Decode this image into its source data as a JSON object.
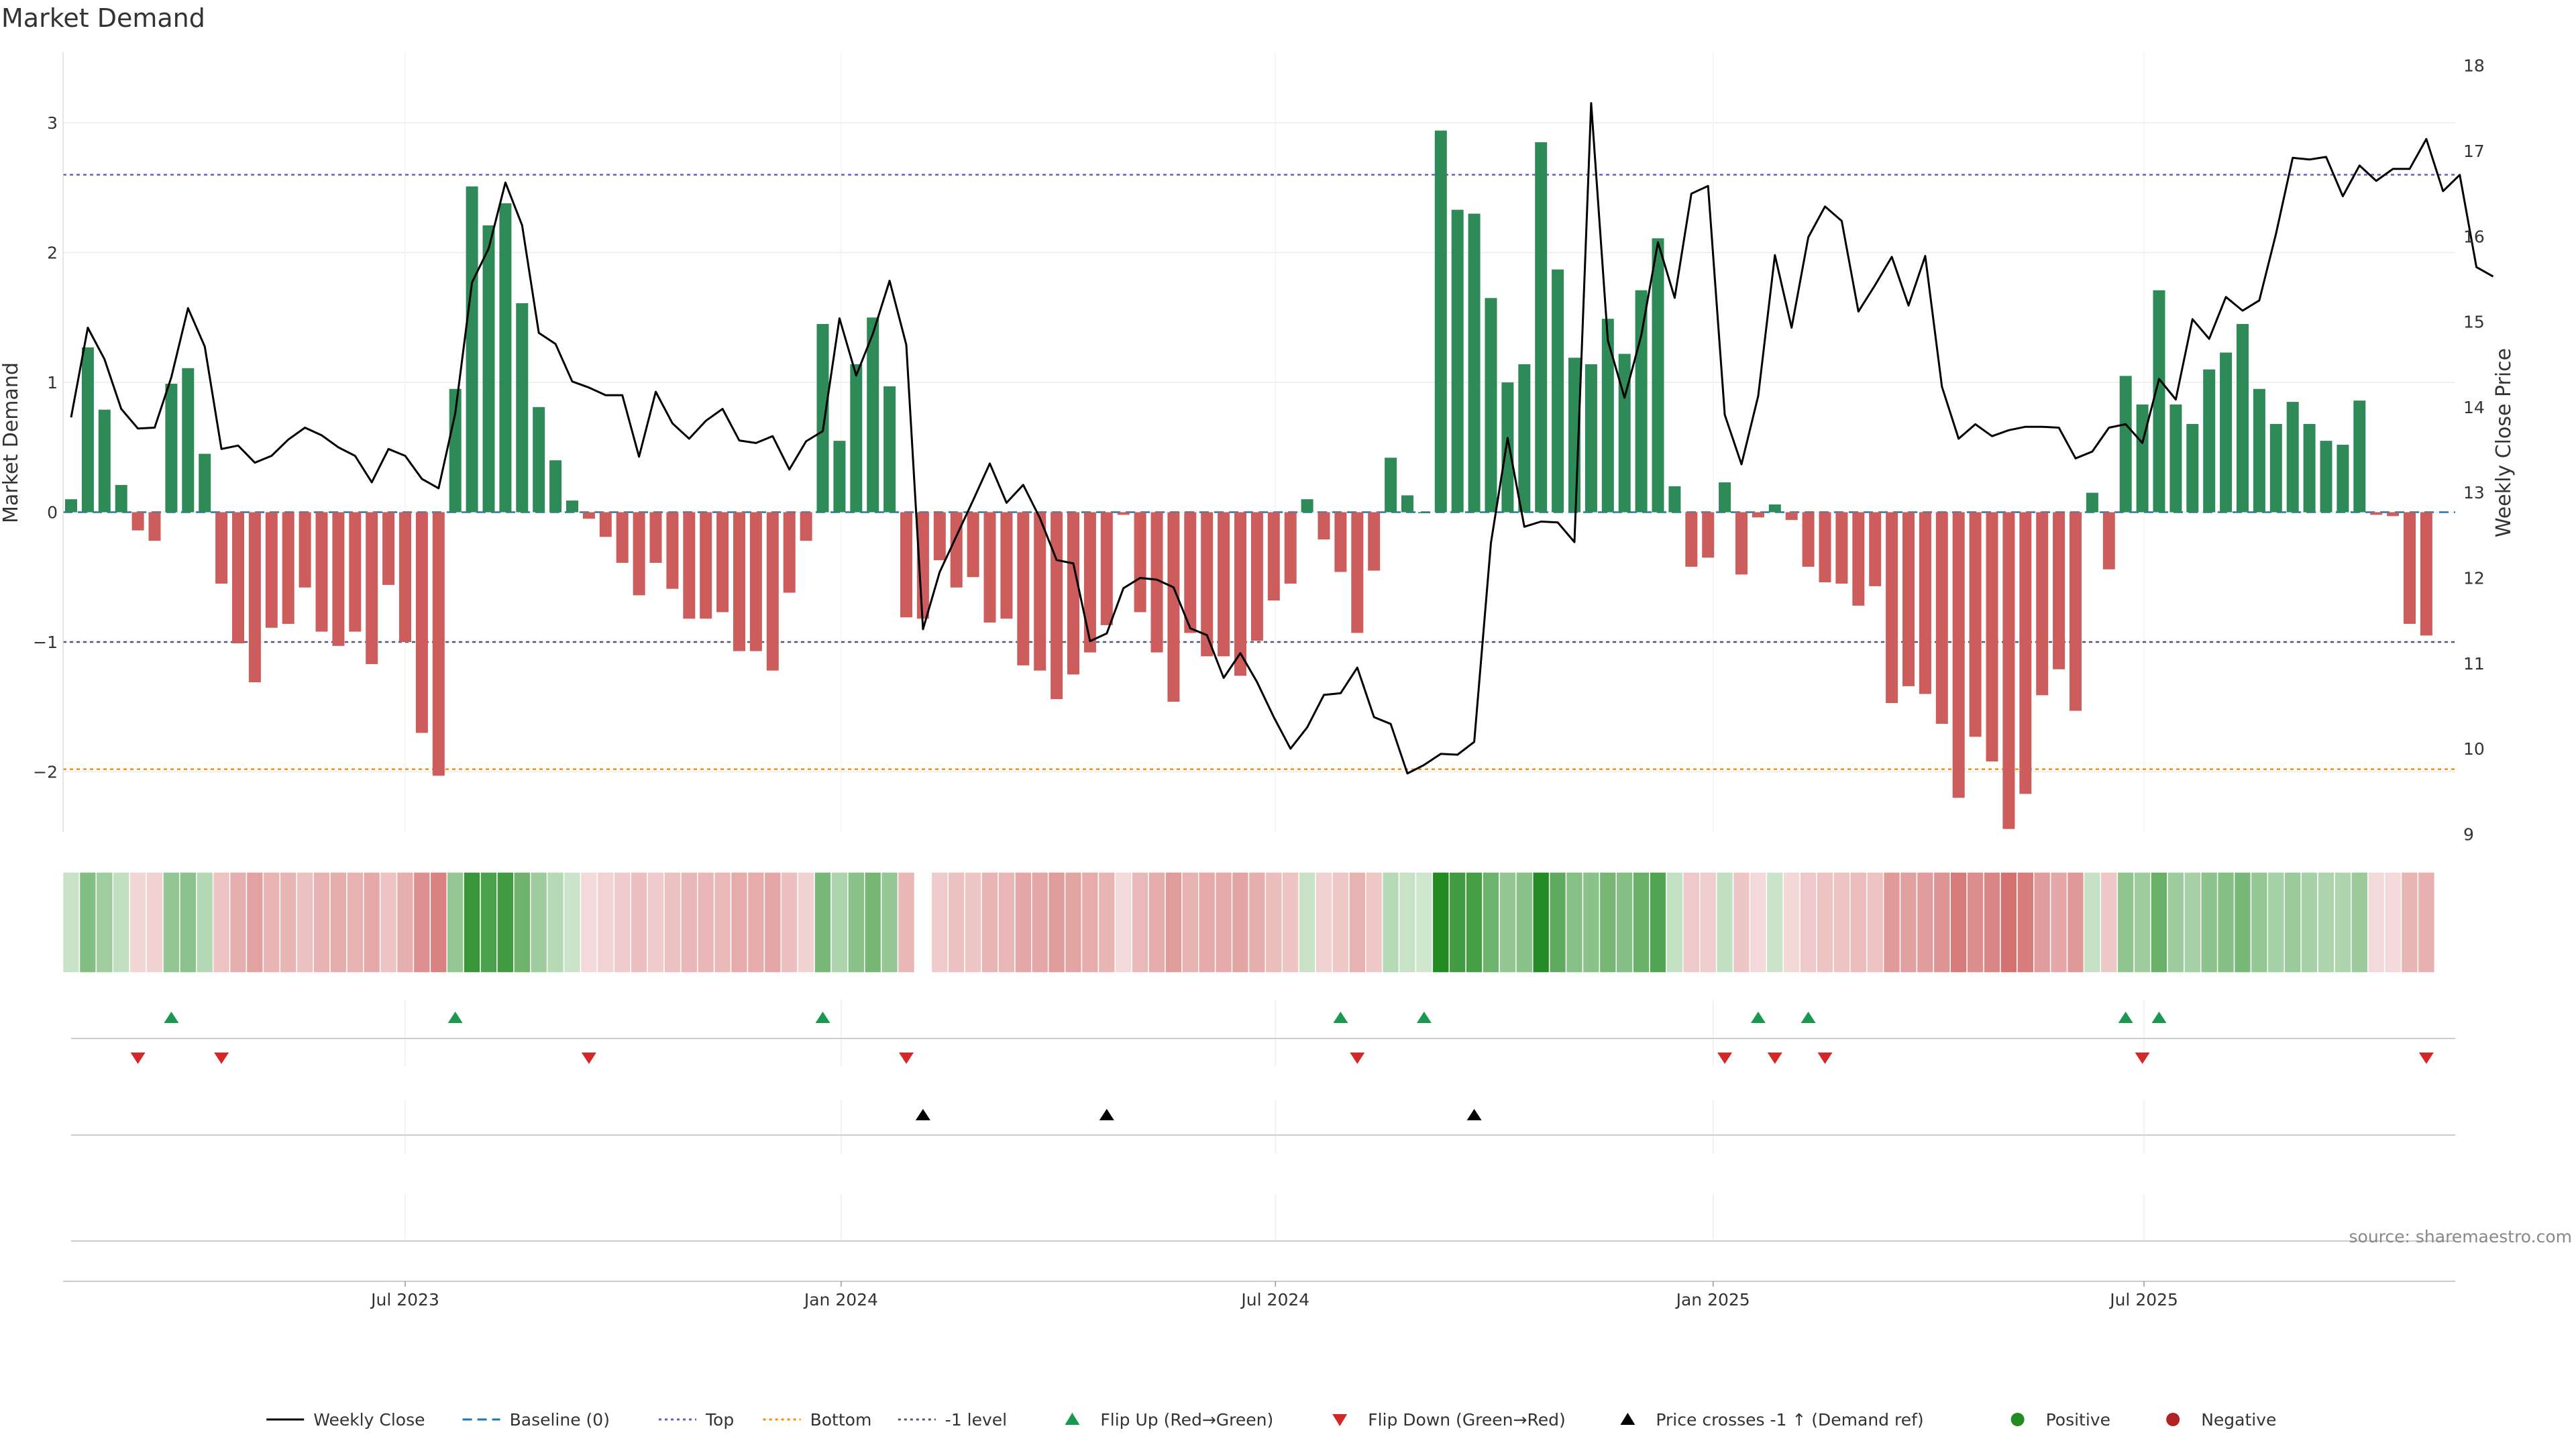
{
  "chart_data": {
    "type": "bar",
    "title": "Market Demand",
    "ylabel": "Market Demand",
    "y2label": "Weekly Close Price",
    "ylim": [
      -2.7,
      3.3
    ],
    "y2lim": [
      8.9,
      18.1
    ],
    "yticks": [
      {
        "v": 3,
        "t": "3"
      },
      {
        "v": 2,
        "t": "2"
      },
      {
        "v": 1,
        "t": "1"
      },
      {
        "v": 0,
        "t": "0"
      },
      {
        "v": -1,
        "t": "−1"
      },
      {
        "v": -2,
        "t": "−2"
      }
    ],
    "y2ticks": [
      9,
      10,
      11,
      12,
      13,
      14,
      15,
      16,
      17,
      18
    ],
    "xticks": [
      {
        "i": 20,
        "t": "Jul 2023"
      },
      {
        "i": 46.1,
        "t": "Jan 2024"
      },
      {
        "i": 72.1,
        "t": "Jul 2024"
      },
      {
        "i": 98.3,
        "t": "Jan 2025"
      },
      {
        "i": 124.1,
        "t": "Jul 2025"
      }
    ],
    "reference_lines": {
      "top": 2.6,
      "bottom": -1.98,
      "minus1": -1.0,
      "baseline": 0
    },
    "demand": [
      0.1,
      1.27,
      0.79,
      0.21,
      -0.14,
      -0.22,
      0.99,
      1.11,
      0.45,
      -0.55,
      -1.01,
      -1.31,
      -0.89,
      -0.86,
      -0.58,
      -0.92,
      -1.03,
      -0.92,
      -1.17,
      -0.56,
      -1.0,
      -1.7,
      -2.03,
      0.95,
      2.51,
      2.21,
      2.38,
      1.61,
      0.81,
      0.4,
      0.09,
      -0.05,
      -0.19,
      -0.39,
      -0.64,
      -0.39,
      -0.59,
      -0.82,
      -0.82,
      -0.77,
      -1.07,
      -1.07,
      -1.22,
      -0.62,
      -0.22,
      1.45,
      0.55,
      1.14,
      1.5,
      0.97,
      -0.81,
      -0.82,
      -0.37,
      -0.58,
      -0.5,
      -0.85,
      -0.82,
      -1.18,
      -1.22,
      -1.44,
      -1.25,
      -1.08,
      -0.87,
      -0.02,
      -0.77,
      -1.08,
      -1.46,
      -0.93,
      -1.11,
      -1.11,
      -1.26,
      -0.99,
      -0.68,
      -0.55,
      0.1,
      -0.21,
      -0.46,
      -0.93,
      -0.45,
      0.42,
      0.13,
      0.0,
      2.94,
      2.33,
      2.3,
      1.65,
      1.0,
      1.14,
      2.85,
      1.87,
      1.19,
      1.14,
      1.49,
      1.22,
      1.71,
      2.11,
      0.2,
      -0.42,
      -0.35,
      0.23,
      -0.48,
      -0.04,
      0.06,
      -0.06,
      -0.42,
      -0.54,
      -0.55,
      -0.72,
      -0.57,
      -1.47,
      -1.34,
      -1.4,
      -1.63,
      -2.2,
      -1.73,
      -1.92,
      -2.44,
      -2.17,
      -1.41,
      -1.21,
      -1.53,
      0.15,
      -0.44,
      1.05,
      0.83,
      1.71,
      0.83,
      0.68,
      1.1,
      1.23,
      1.45,
      0.95,
      0.68,
      0.85,
      0.68,
      0.55,
      0.52,
      0.86,
      -0.02,
      -0.03,
      -0.86,
      -0.95
    ],
    "close": [
      13.88,
      14.93,
      14.56,
      13.98,
      13.75,
      13.76,
      14.35,
      15.16,
      14.71,
      13.51,
      13.55,
      13.35,
      13.43,
      13.62,
      13.76,
      13.67,
      13.53,
      13.43,
      13.12,
      13.51,
      13.43,
      13.16,
      13.05,
      13.93,
      15.46,
      15.86,
      16.63,
      16.13,
      14.87,
      14.74,
      14.3,
      14.23,
      14.14,
      14.14,
      13.42,
      14.18,
      13.81,
      13.63,
      13.84,
      13.98,
      13.61,
      13.58,
      13.66,
      13.27,
      13.6,
      13.72,
      15.04,
      14.37,
      14.86,
      15.48,
      14.73,
      11.4,
      12.07,
      12.49,
      12.91,
      13.34,
      12.88,
      13.09,
      12.7,
      12.21,
      12.17,
      11.26,
      11.35,
      11.88,
      12.0,
      11.98,
      11.89,
      11.41,
      11.33,
      10.83,
      11.12,
      10.78,
      10.37,
      10.0,
      10.25,
      10.63,
      10.65,
      10.95,
      10.37,
      10.29,
      9.71,
      9.81,
      9.94,
      9.93,
      10.08,
      12.41,
      13.64,
      12.6,
      12.66,
      12.65,
      12.42,
      17.56,
      14.78,
      14.11,
      14.84,
      15.93,
      15.28,
      16.5,
      16.59,
      13.91,
      13.33,
      14.13,
      15.78,
      14.93,
      15.99,
      16.35,
      16.18,
      15.12,
      15.43,
      15.76,
      15.19,
      15.77,
      14.24,
      13.63,
      13.8,
      13.66,
      13.73,
      13.77,
      13.77,
      13.76,
      13.4,
      13.48,
      13.76,
      13.8,
      13.58,
      14.33,
      14.09,
      15.03,
      14.8,
      15.29,
      15.13,
      15.25,
      16.03,
      16.92,
      16.9,
      16.93,
      16.47,
      16.83,
      16.65,
      16.79,
      16.79,
      17.14,
      16.53,
      16.72,
      15.64,
      15.53
    ],
    "heat_gap": [
      51
    ],
    "flip_up": [
      6,
      23,
      45,
      76,
      81,
      101,
      104,
      123,
      125
    ],
    "flip_down": [
      4,
      9,
      31,
      50,
      77,
      99,
      102,
      105,
      124,
      141
    ],
    "price_cross": [
      51,
      62,
      84
    ],
    "colors": {
      "bar_pos": "#2e8b57",
      "bar_neg": "#cd5c5c",
      "close_line": "#000000",
      "baseline": "#1f77b4",
      "top_line": "#6a5acd",
      "bottom_line": "#ff8c00",
      "minus1_line": "#555577",
      "flip_up": "#1a9850",
      "flip_down": "#d62728",
      "price_cross": "#000000",
      "positive": "#228b22",
      "negative": "#b22222"
    }
  },
  "legend": [
    {
      "label": "Weekly Close",
      "kind": "line"
    },
    {
      "label": "Baseline (0)",
      "kind": "dash"
    },
    {
      "label": "Top",
      "kind": "dot-top"
    },
    {
      "label": "Bottom",
      "kind": "dot-bottom"
    },
    {
      "label": "-1 level",
      "kind": "dot-minus1"
    },
    {
      "label": "Flip Up (Red→Green)",
      "kind": "tri-up"
    },
    {
      "label": "Flip Down (Green→Red)",
      "kind": "tri-down"
    },
    {
      "label": "Price crosses -1 ↑ (Demand ref)",
      "kind": "tri-black"
    },
    {
      "label": "Positive",
      "kind": "dot-pos"
    },
    {
      "label": "Negative",
      "kind": "dot-neg"
    }
  ],
  "source": "source: sharemaestro.com"
}
